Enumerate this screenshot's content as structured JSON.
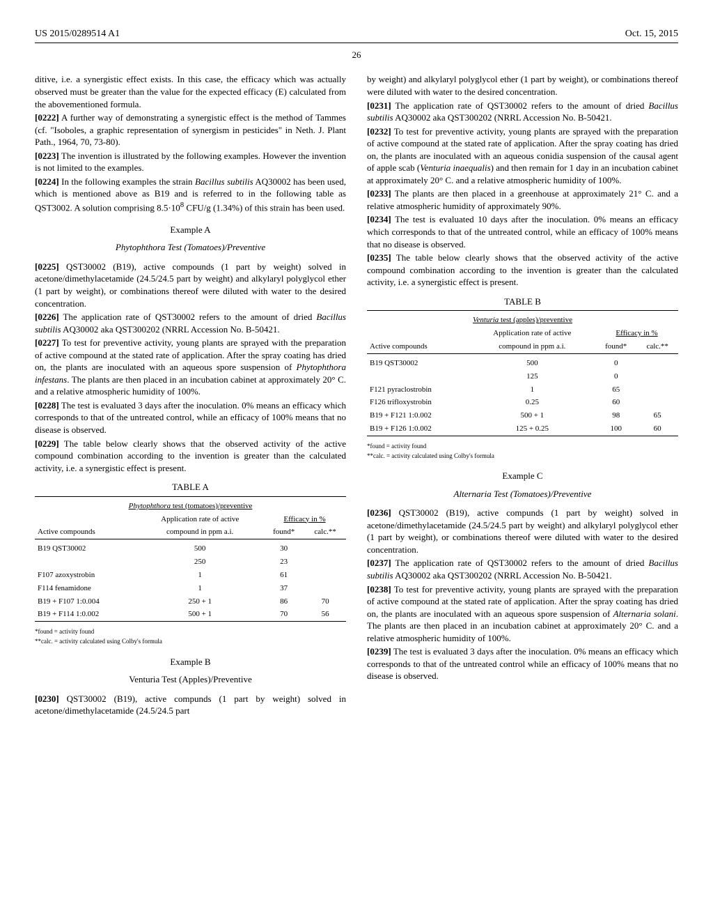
{
  "header": {
    "left": "US 2015/0289514 A1",
    "right": "Oct. 15, 2015"
  },
  "page_number": "26",
  "left_col": {
    "p1": "ditive, i.e. a synergistic effect exists. In this case, the efficacy which was actually observed must be greater than the value for the expected efficacy (E) calculated from the abovementioned formula.",
    "p2_num": "[0222]",
    "p2": " A further way of demonstrating a synergistic effect is the method of Tammes (cf. \"Isoboles, a graphic representation of synergism in pesticides\" in Neth. J. Plant Path., 1964, 70, 73-80).",
    "p3_num": "[0223]",
    "p3": " The invention is illustrated by the following examples. However the invention is not limited to the examples.",
    "p4_num": "[0224]",
    "p4a": " In the following examples the strain ",
    "p4b": "Bacillus subtilis",
    "p4c": " AQ30002 has been used, which is mentioned above as B19 and is referred to in the following table as QST3002. A solution comprising 8.5·10",
    "p4d": "8",
    "p4e": " CFU/g (1.34%) of this strain has been used.",
    "exA": "Example A",
    "exA_sub_a": "Phytophthora",
    "exA_sub_b": " Test (Tomatoes)/Preventive",
    "p5_num": "[0225]",
    "p5": " QST30002 (B19), active compounds (1 part by weight) solved in acetone/dimethylacetamide (24.5/24.5 part by weight) and alkylaryl polyglycol ether (1 part by weight), or combinations thereof were diluted with water to the desired concentration.",
    "p6_num": "[0226]",
    "p6a": " The application rate of QST30002 refers to the amount of dried ",
    "p6b": "Bacillus subtilis",
    "p6c": " AQ30002 aka QST300202 (NRRL Accession No. B-50421.",
    "p7_num": "[0227]",
    "p7a": " To test for preventive activity, young plants are sprayed with the preparation of active compound at the stated rate of application. After the spray coating has dried on, the plants are inoculated with an aqueous spore suspension of ",
    "p7b": "Phytophthora infestans",
    "p7c": ". The plants are then placed in an incubation cabinet at approximately 20° C. and a relative atmospheric humidity of 100%.",
    "p8_num": "[0228]",
    "p8": " The test is evaluated 3 days after the inoculation. 0% means an efficacy which corresponds to that of the untreated control, while an efficacy of 100% means that no disease is observed.",
    "p9_num": "[0229]",
    "p9": " The table below clearly shows that the observed activity of the active compound combination according to the invention is greater than the calculated activity, i.e. a synergistic effect is present.",
    "tableA": {
      "caption": "TABLE A",
      "title_a": "Phytophthora",
      "title_b": " test (tomatoes)/preventive",
      "col_app1": "Application rate of active",
      "col_app2": "compound in ppm a.i.",
      "col_eff": "Efficacy in %",
      "col_active": "Active compounds",
      "col_found": "found*",
      "col_calc": "calc.**",
      "rows": [
        {
          "c0": "B19 QST30002",
          "c1": "500",
          "c2": "30",
          "c3": ""
        },
        {
          "c0": "",
          "c1": "250",
          "c2": "23",
          "c3": ""
        },
        {
          "c0": "F107 azoxystrobin",
          "c1": "1",
          "c2": "61",
          "c3": ""
        },
        {
          "c0": "F114 fenamidone",
          "c1": "1",
          "c2": "37",
          "c3": ""
        },
        {
          "c0": "B19 + F107 1:0.004",
          "c1": "250 + 1",
          "c2": "86",
          "c3": "70"
        },
        {
          "c0": "B19 + F114 1:0.002",
          "c1": "500 + 1",
          "c2": "70",
          "c3": "56"
        }
      ],
      "note1": "*found = activity found",
      "note2": "**calc. = activity calculated using Colby's formula"
    },
    "exB": "Example B",
    "exB_sub": "Venturia Test (Apples)/Preventive",
    "p10_num": "[0230]",
    "p10": " QST30002 (B19), active compunds (1 part by weight) solved in acetone/dimethylacetamide (24.5/24.5 part"
  },
  "right_col": {
    "p1": "by weight) and alkylaryl polyglycol ether (1 part by weight), or combinations thereof were diluted with water to the desired concentration.",
    "p2_num": "[0231]",
    "p2a": " The application rate of QST30002 refers to the amount of dried ",
    "p2b": "Bacillus subtilis",
    "p2c": " AQ30002 aka QST300202 (NRRL Accession No. B-50421.",
    "p3_num": "[0232]",
    "p3a": " To test for preventive activity, young plants are sprayed with the preparation of active compound at the stated rate of application. After the spray coating has dried on, the plants are inoculated with an aqueous conidia suspension of the causal agent of apple scab (",
    "p3b": "Venturia inaequalis",
    "p3c": ") and then remain for 1 day in an incubation cabinet at approximately 20° C. and a relative atmospheric humidity of 100%.",
    "p4_num": "[0233]",
    "p4": " The plants are then placed in a greenhouse at approximately 21° C. and a relative atmospheric humidity of approximately 90%.",
    "p5_num": "[0234]",
    "p5": " The test is evaluated 10 days after the inoculation. 0% means an efficacy which corresponds to that of the untreated control, while an efficacy of 100% means that no disease is observed.",
    "p6_num": "[0235]",
    "p6": " The table below clearly shows that the observed activity of the active compound combination according to the invention is greater than the calculated activity, i.e. a synergistic effect is present.",
    "tableB": {
      "caption": "TABLE B",
      "title_a": "Venturia",
      "title_b": " test (apples)/preventive",
      "col_app1": "Application rate of active",
      "col_app2": "compound in ppm a.i.",
      "col_eff": "Efficacy in %",
      "col_active": "Active compounds",
      "col_found": "found*",
      "col_calc": "calc.**",
      "rows": [
        {
          "c0": "B19 QST30002",
          "c1": "500",
          "c2": "0",
          "c3": ""
        },
        {
          "c0": "",
          "c1": "125",
          "c2": "0",
          "c3": ""
        },
        {
          "c0": "F121 pyraclostrobin",
          "c1": "1",
          "c2": "65",
          "c3": ""
        },
        {
          "c0": "F126 trifloxystrobin",
          "c1": "0.25",
          "c2": "60",
          "c3": ""
        },
        {
          "c0": "B19 + F121 1:0.002",
          "c1": "500 + 1",
          "c2": "98",
          "c3": "65"
        },
        {
          "c0": "B19 + F126 1:0.002",
          "c1": "125 + 0.25",
          "c2": "100",
          "c3": "60"
        }
      ],
      "note1": "*found = activity found",
      "note2": "**calc. = activity calculated using Colby's formula"
    },
    "exC": "Example C",
    "exC_sub_a": "Alternaria",
    "exC_sub_b": " Test (Tomatoes)/Preventive",
    "p7_num": "[0236]",
    "p7": " QST30002 (B19), active compunds (1 part by weight) solved in acetone/dimethylacetamide (24.5/24.5 part by weight) and alkylaryl polyglycol ether (1 part by weight), or combinations thereof were diluted with water to the desired concentration.",
    "p8_num": "[0237]",
    "p8a": " The application rate of QST30002 refers to the amount of dried ",
    "p8b": "Bacillus subtilis",
    "p8c": " AQ30002 aka QST300202 (NRRL Accession No. B-50421.",
    "p9_num": "[0238]",
    "p9a": " To test for preventive activity, young plants are sprayed with the preparation of active compound at the stated rate of application. After the spray coating has dried on, the plants are inoculated with an aqueous spore suspension of ",
    "p9b": "Alternaria solani",
    "p9c": ". The plants are then placed in an incubation cabinet at approximately 20° C. and a relative atmospheric humidity of 100%.",
    "p10_num": "[0239]",
    "p10": " The test is evaluated 3 days after the inoculation. 0% means an efficacy which corresponds to that of the untreated control while an efficacy of 100% means that no disease is observed."
  }
}
